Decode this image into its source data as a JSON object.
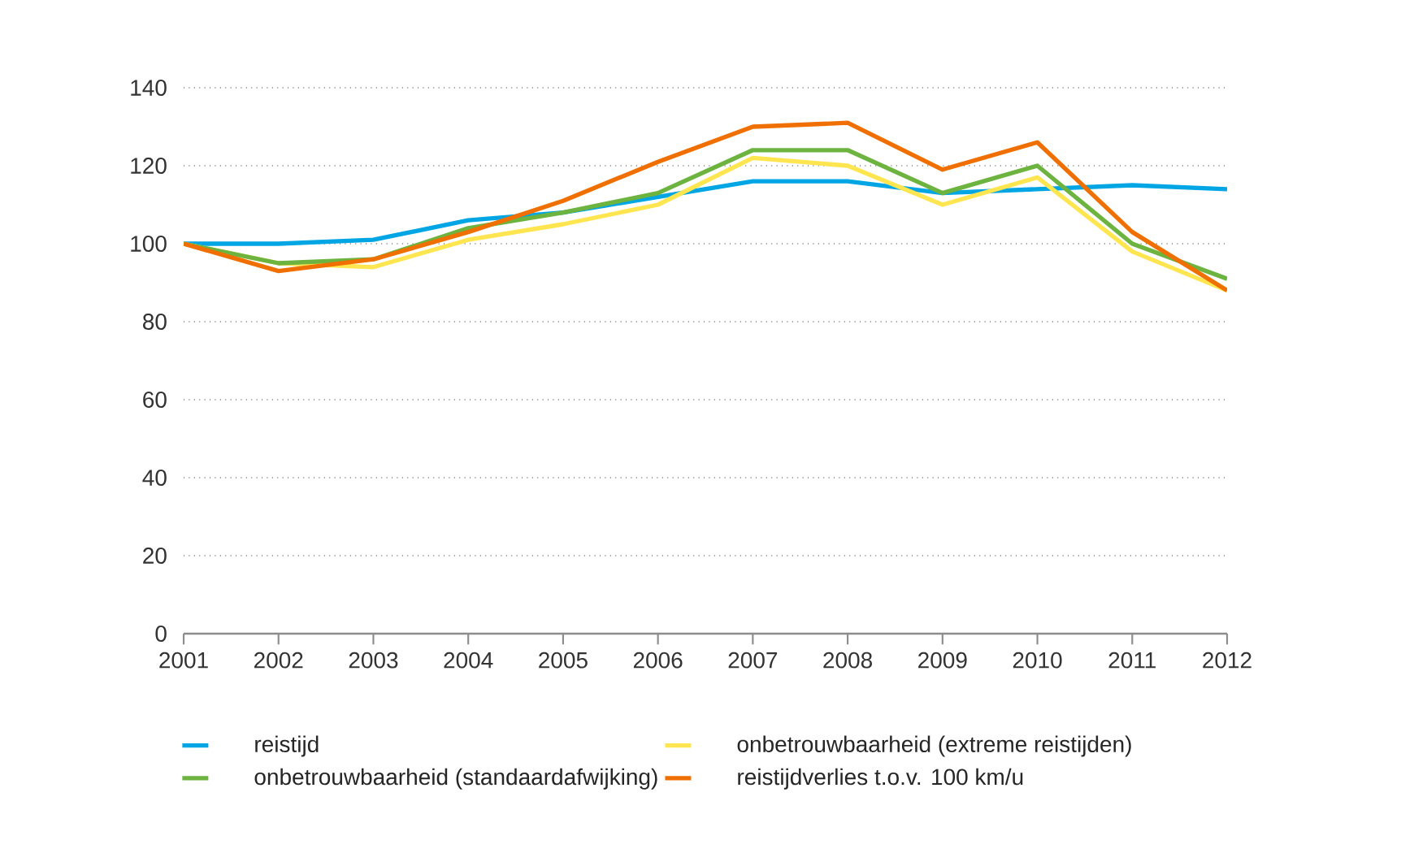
{
  "chart_data": {
    "type": "line",
    "categories": [
      "2001",
      "2002",
      "2003",
      "2004",
      "2005",
      "2006",
      "2007",
      "2008",
      "2009",
      "2010",
      "2011",
      "2012"
    ],
    "series": [
      {
        "name": "reistijd",
        "color": "#00a6e4",
        "values": [
          100,
          100,
          101,
          106,
          108,
          112,
          116,
          116,
          113,
          114,
          115,
          114
        ]
      },
      {
        "name": "onbetrouwbaarheid (extreme reistijden)",
        "color": "#ffe54f",
        "values": [
          100,
          95,
          94,
          101,
          105,
          110,
          122,
          120,
          110,
          117,
          98,
          88
        ]
      },
      {
        "name": "onbetrouwbaarheid (standaardafwijking)",
        "color": "#6db33f",
        "values": [
          100,
          95,
          96,
          104,
          108,
          113,
          124,
          124,
          113,
          120,
          100,
          91
        ]
      },
      {
        "name": "reistijdverlies t.o.v. 100 km/u",
        "color": "#ef7000",
        "values": [
          100,
          93,
          96,
          103,
          111,
          121,
          130,
          131,
          119,
          126,
          103,
          88
        ]
      }
    ],
    "ylim": [
      0,
      140
    ],
    "yticks": [
      0,
      20,
      40,
      60,
      80,
      100,
      120,
      140
    ],
    "grid": "y",
    "legend": "bottom",
    "marker": "none",
    "line_style": "solid"
  }
}
